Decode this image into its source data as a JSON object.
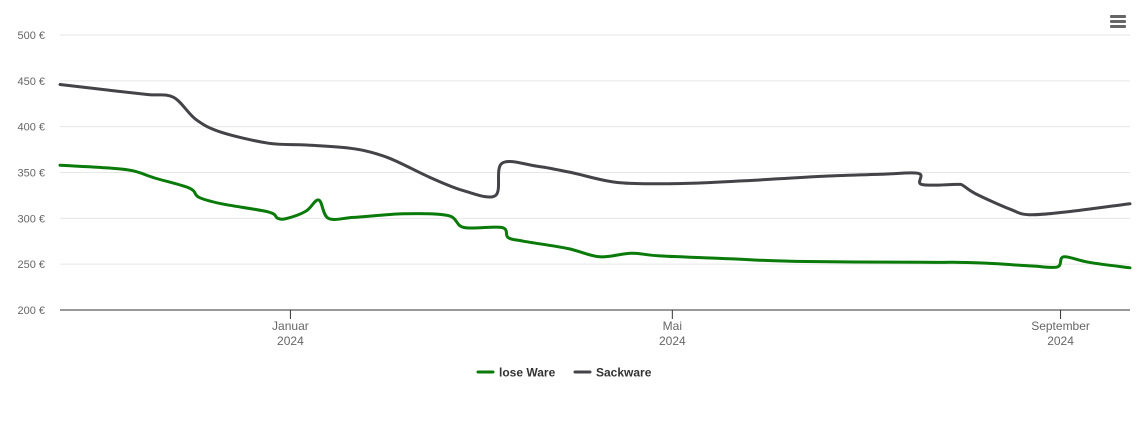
{
  "chart_data": {
    "type": "line",
    "y_unit": "€",
    "ylim": [
      200,
      500
    ],
    "yticks": [
      "500 €",
      "450 €",
      "400 €",
      "350 €",
      "300 €",
      "250 €",
      "200 €"
    ],
    "ytick_values": [
      500,
      450,
      400,
      350,
      300,
      250,
      200
    ],
    "xlim": [
      "2023-10-20",
      "2024-09-23"
    ],
    "xticks": [
      {
        "date": "2024-01-01",
        "month": "Januar",
        "year": "2024"
      },
      {
        "date": "2024-05-01",
        "month": "Mai",
        "year": "2024"
      },
      {
        "date": "2024-09-01",
        "month": "September",
        "year": "2024"
      }
    ],
    "grid": true,
    "legend_position": "bottom-center",
    "series": [
      {
        "name": "lose Ware",
        "color": "#0a7a0a",
        "points": [
          [
            "2023-10-20",
            358
          ],
          [
            "2023-11-04",
            355
          ],
          [
            "2023-11-12",
            352
          ],
          [
            "2023-11-19",
            344
          ],
          [
            "2023-11-30",
            333
          ],
          [
            "2023-12-03",
            323
          ],
          [
            "2023-12-10",
            316
          ],
          [
            "2023-12-25",
            307
          ],
          [
            "2023-12-28",
            300
          ],
          [
            "2023-12-31",
            300
          ],
          [
            "2024-01-06",
            308
          ],
          [
            "2024-01-10",
            320
          ],
          [
            "2024-01-13",
            300
          ],
          [
            "2024-01-21",
            301
          ],
          [
            "2024-02-06",
            305
          ],
          [
            "2024-02-20",
            303
          ],
          [
            "2024-02-25",
            290
          ],
          [
            "2024-03-08",
            290
          ],
          [
            "2024-03-10",
            279
          ],
          [
            "2024-03-15",
            275
          ],
          [
            "2024-03-29",
            267
          ],
          [
            "2024-04-08",
            258
          ],
          [
            "2024-04-18",
            262
          ],
          [
            "2024-04-27",
            259
          ],
          [
            "2024-05-19",
            256
          ],
          [
            "2024-06-09",
            253
          ],
          [
            "2024-07-19",
            252
          ],
          [
            "2024-07-29",
            252
          ],
          [
            "2024-08-09",
            251
          ],
          [
            "2024-08-23",
            248
          ],
          [
            "2024-08-31",
            247
          ],
          [
            "2024-09-02",
            258
          ],
          [
            "2024-09-10",
            252
          ],
          [
            "2024-09-23",
            246
          ]
        ]
      },
      {
        "name": "Sackware",
        "color": "#434348",
        "points": [
          [
            "2023-10-20",
            446
          ],
          [
            "2023-11-04",
            440
          ],
          [
            "2023-11-17",
            435
          ],
          [
            "2023-11-25",
            432
          ],
          [
            "2023-12-02",
            408
          ],
          [
            "2023-12-10",
            394
          ],
          [
            "2023-12-25",
            382
          ],
          [
            "2024-01-06",
            380
          ],
          [
            "2024-01-21",
            376
          ],
          [
            "2024-02-01",
            366
          ],
          [
            "2024-02-14",
            345
          ],
          [
            "2024-02-25",
            330
          ],
          [
            "2024-03-06",
            325
          ],
          [
            "2024-03-08",
            360
          ],
          [
            "2024-03-19",
            357
          ],
          [
            "2024-03-30",
            350
          ],
          [
            "2024-04-14",
            339
          ],
          [
            "2024-05-04",
            338
          ],
          [
            "2024-05-24",
            341
          ],
          [
            "2024-06-18",
            346
          ],
          [
            "2024-07-06",
            348
          ],
          [
            "2024-07-18",
            349
          ],
          [
            "2024-07-19",
            337
          ],
          [
            "2024-07-30",
            337
          ],
          [
            "2024-08-01",
            336
          ],
          [
            "2024-08-05",
            327
          ],
          [
            "2024-08-16",
            310
          ],
          [
            "2024-08-22",
            304
          ],
          [
            "2024-09-03",
            307
          ],
          [
            "2024-09-23",
            316
          ]
        ]
      }
    ]
  }
}
